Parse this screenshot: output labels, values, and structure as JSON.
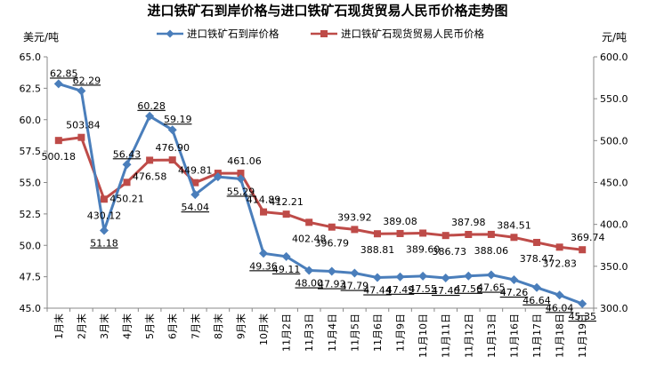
{
  "chart_data": {
    "type": "line",
    "title": "进口铁矿石到岸价格与进口铁矿石现货贸易人民币价格走势图",
    "left_unit": "美元/吨",
    "right_unit": "元/吨",
    "legend_position": "top",
    "grid": false,
    "categories": [
      "1月末",
      "2月末",
      "3月末",
      "4月末",
      "5月末",
      "6月末",
      "7月末",
      "8月末",
      "9月末",
      "10月末",
      "11月2日",
      "11月3日",
      "11月4日",
      "11月5日",
      "11月6日",
      "11月9日",
      "11月10日",
      "11月11日",
      "11月12日",
      "11月13日",
      "11月16日",
      "11月17日",
      "11月18日",
      "11月19日"
    ],
    "y_left": {
      "min": 45.0,
      "max": 65.0,
      "ticks": [
        "45.0",
        "47.5",
        "50.0",
        "52.5",
        "55.0",
        "57.5",
        "60.0",
        "62.5",
        "65.0"
      ]
    },
    "y_right": {
      "min": 300.0,
      "max": 600.0,
      "ticks": [
        "300.0",
        "350.0",
        "400.0",
        "450.0",
        "500.0",
        "550.0",
        "600.0"
      ]
    },
    "series": [
      {
        "name": "进口铁矿石到岸价格",
        "axis": "left",
        "color": "#4a7ebb",
        "marker": "diamond",
        "values": [
          62.85,
          62.29,
          51.18,
          56.43,
          60.28,
          59.19,
          54.04,
          55.45,
          55.29,
          49.36,
          49.11,
          48.0,
          47.93,
          47.79,
          47.44,
          47.49,
          47.55,
          47.4,
          47.56,
          47.65,
          47.26,
          46.64,
          46.04,
          45.35
        ],
        "labels": [
          "62.85",
          "62.29",
          "51.18",
          "56.43",
          "60.28",
          "59.19",
          "54.04",
          "",
          "55.29",
          "49.36",
          "49.11",
          "48.00",
          "47.93",
          "47.79",
          "47.44",
          "47.49",
          "47.55",
          "47.40",
          "47.56",
          "47.65",
          "47.26",
          "46.64",
          "46.04",
          "45.35"
        ]
      },
      {
        "name": "进口铁矿石现货贸易人民币价格",
        "axis": "right",
        "color": "#be4b48",
        "marker": "square",
        "values": [
          500.18,
          503.84,
          430.12,
          450.21,
          476.58,
          476.9,
          449.81,
          461.06,
          461.06,
          414.89,
          412.21,
          402.48,
          396.79,
          393.92,
          388.81,
          389.08,
          389.6,
          386.73,
          387.98,
          388.06,
          384.51,
          378.47,
          372.83,
          369.74
        ],
        "labels": [
          "500.18",
          "503.84",
          "430.12",
          "450.21",
          "476.58",
          "476.90",
          "449.81",
          "",
          "461.06",
          "414.89",
          "412.21",
          "402.48",
          "396.79",
          "393.92",
          "388.81",
          "389.08",
          "389.60",
          "386.73",
          "387.98",
          "388.06",
          "384.51",
          "378.47",
          "372.83",
          "369.74"
        ]
      }
    ]
  }
}
